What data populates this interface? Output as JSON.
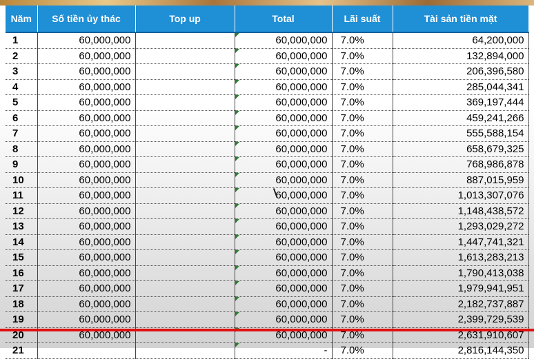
{
  "table": {
    "headers": {
      "year": "Năm",
      "amount": "Số tiền ủy thác",
      "topup": "Top up",
      "total": "Total",
      "rate": "Lãi suất",
      "cash": "Tài sản tiền mặt"
    },
    "rows": [
      {
        "year": "1",
        "amount": "60,000,000",
        "topup": "",
        "total": "60,000,000",
        "rate": "7.0%",
        "cash": "64,200,000"
      },
      {
        "year": "2",
        "amount": "60,000,000",
        "topup": "",
        "total": "60,000,000",
        "rate": "7.0%",
        "cash": "132,894,000"
      },
      {
        "year": "3",
        "amount": "60,000,000",
        "topup": "",
        "total": "60,000,000",
        "rate": "7.0%",
        "cash": "206,396,580"
      },
      {
        "year": "4",
        "amount": "60,000,000",
        "topup": "",
        "total": "60,000,000",
        "rate": "7.0%",
        "cash": "285,044,341"
      },
      {
        "year": "5",
        "amount": "60,000,000",
        "topup": "",
        "total": "60,000,000",
        "rate": "7.0%",
        "cash": "369,197,444"
      },
      {
        "year": "6",
        "amount": "60,000,000",
        "topup": "",
        "total": "60,000,000",
        "rate": "7.0%",
        "cash": "459,241,266"
      },
      {
        "year": "7",
        "amount": "60,000,000",
        "topup": "",
        "total": "60,000,000",
        "rate": "7.0%",
        "cash": "555,588,154"
      },
      {
        "year": "8",
        "amount": "60,000,000",
        "topup": "",
        "total": "60,000,000",
        "rate": "7.0%",
        "cash": "658,679,325"
      },
      {
        "year": "9",
        "amount": "60,000,000",
        "topup": "",
        "total": "60,000,000",
        "rate": "7.0%",
        "cash": "768,986,878"
      },
      {
        "year": "10",
        "amount": "60,000,000",
        "topup": "",
        "total": "60,000,000",
        "rate": "7.0%",
        "cash": "887,015,959"
      },
      {
        "year": "11",
        "amount": "60,000,000",
        "topup": "",
        "total": "60,000,000",
        "rate": "7.0%",
        "cash": "1,013,307,076"
      },
      {
        "year": "12",
        "amount": "60,000,000",
        "topup": "",
        "total": "60,000,000",
        "rate": "7.0%",
        "cash": "1,148,438,572"
      },
      {
        "year": "13",
        "amount": "60,000,000",
        "topup": "",
        "total": "60,000,000",
        "rate": "7.0%",
        "cash": "1,293,029,272"
      },
      {
        "year": "14",
        "amount": "60,000,000",
        "topup": "",
        "total": "60,000,000",
        "rate": "7.0%",
        "cash": "1,447,741,321"
      },
      {
        "year": "15",
        "amount": "60,000,000",
        "topup": "",
        "total": "60,000,000",
        "rate": "7.0%",
        "cash": "1,613,283,213"
      },
      {
        "year": "16",
        "amount": "60,000,000",
        "topup": "",
        "total": "60,000,000",
        "rate": "7.0%",
        "cash": "1,790,413,038"
      },
      {
        "year": "17",
        "amount": "60,000,000",
        "topup": "",
        "total": "60,000,000",
        "rate": "7.0%",
        "cash": "1,979,941,951"
      },
      {
        "year": "18",
        "amount": "60,000,000",
        "topup": "",
        "total": "60,000,000",
        "rate": "7.0%",
        "cash": "2,182,737,887"
      },
      {
        "year": "19",
        "amount": "60,000,000",
        "topup": "",
        "total": "60,000,000",
        "rate": "7.0%",
        "cash": "2,399,729,539"
      },
      {
        "year": "20",
        "amount": "60,000,000",
        "topup": "",
        "total": "60,000,000",
        "rate": "7.0%",
        "cash": "2,631,910,607"
      },
      {
        "year": "21",
        "amount": "",
        "topup": "",
        "total": "-",
        "rate": "7.0%",
        "cash": "2,816,144,350"
      }
    ]
  },
  "colors": {
    "header_bg": "#1f8fd6",
    "header_text": "#ffffff",
    "marker_line": "#e01010",
    "cell_flag": "#2e7d32"
  }
}
